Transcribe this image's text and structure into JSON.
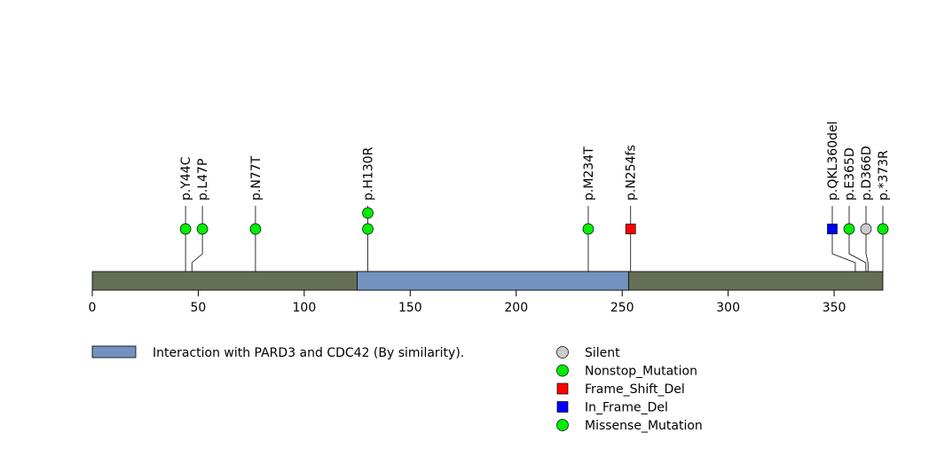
{
  "chart_data": {
    "type": "lollipop",
    "protein_length": 373,
    "xlim": [
      0,
      373
    ],
    "x_ticks": [
      0,
      50,
      100,
      150,
      200,
      250,
      300,
      350
    ],
    "domains": [
      {
        "start": 125,
        "end": 253,
        "color": "#7392c0",
        "label": "Interaction with PARD3 and CDC42 (By similarity)."
      }
    ],
    "backbone_color": "#646f55",
    "mutations": [
      {
        "label": "p.Y44C",
        "position": 44,
        "type": "Missense_Mutation",
        "count": 1
      },
      {
        "label": "p.L47P",
        "position": 47,
        "type": "Missense_Mutation",
        "count": 1
      },
      {
        "label": "p.N77T",
        "position": 77,
        "type": "Missense_Mutation",
        "count": 1
      },
      {
        "label": "p.H130R",
        "position": 130,
        "type": "Missense_Mutation",
        "count": 2
      },
      {
        "label": "p.M234T",
        "position": 234,
        "type": "Missense_Mutation",
        "count": 1
      },
      {
        "label": "p.N254fs",
        "position": 254,
        "type": "Frame_Shift_Del",
        "count": 1
      },
      {
        "label": "p.QKL360del",
        "position": 360,
        "type": "In_Frame_Del",
        "count": 1
      },
      {
        "label": "p.E365D",
        "position": 365,
        "type": "Missense_Mutation",
        "count": 1
      },
      {
        "label": "p.D366D",
        "position": 366,
        "type": "Silent",
        "count": 1
      },
      {
        "label": "p.*373R",
        "position": 373,
        "type": "Nonstop_Mutation",
        "count": 1
      }
    ],
    "legend": [
      {
        "label": "Silent",
        "shape": "circle",
        "color": "#cccccc"
      },
      {
        "label": "Nonstop_Mutation",
        "shape": "circle",
        "color": "#00ee00"
      },
      {
        "label": "Frame_Shift_Del",
        "shape": "square",
        "color": "#ff0000"
      },
      {
        "label": "In_Frame_Del",
        "shape": "square",
        "color": "#0000ff"
      },
      {
        "label": "Missense_Mutation",
        "shape": "circle",
        "color": "#00ee00"
      }
    ]
  }
}
